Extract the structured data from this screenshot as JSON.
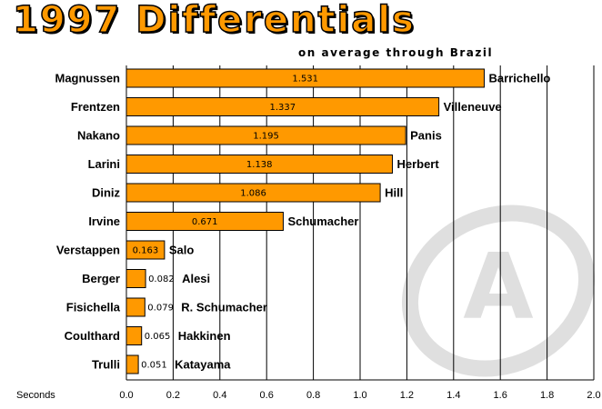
{
  "chart_data": {
    "type": "bar",
    "orientation": "horizontal",
    "title": "1997 Differentials",
    "subtitle": "on average through Brazil",
    "xlabel": "Seconds",
    "xlim": [
      0,
      2.0
    ],
    "xticks": [
      "0.0",
      "0.2",
      "0.4",
      "0.6",
      "0.8",
      "1.0",
      "1.2",
      "1.4",
      "1.6",
      "1.8",
      "2.0"
    ],
    "grid": "vertical",
    "bar_color": "#ff9900",
    "rows": [
      {
        "left": "Magnussen",
        "right": "Barrichello",
        "value": 1.531,
        "label": "1.531"
      },
      {
        "left": "Frentzen",
        "right": "Villeneuve",
        "value": 1.337,
        "label": "1.337"
      },
      {
        "left": "Nakano",
        "right": "Panis",
        "value": 1.195,
        "label": "1.195"
      },
      {
        "left": "Larini",
        "right": "Herbert",
        "value": 1.138,
        "label": "1.138"
      },
      {
        "left": "Diniz",
        "right": "Hill",
        "value": 1.086,
        "label": "1.086"
      },
      {
        "left": "Irvine",
        "right": "Schumacher",
        "value": 0.671,
        "label": "0.671"
      },
      {
        "left": "Verstappen",
        "right": "Salo",
        "value": 0.163,
        "label": "0.163"
      },
      {
        "left": "Berger",
        "right": "Alesi",
        "value": 0.082,
        "label": "0.082"
      },
      {
        "left": "Fisichella",
        "right": "R. Schumacher",
        "value": 0.079,
        "label": "0.079"
      },
      {
        "left": "Coulthard",
        "right": "Hakkinen",
        "value": 0.065,
        "label": "0.065"
      },
      {
        "left": "Trulli",
        "right": "Katayama",
        "value": 0.051,
        "label": "0.051"
      }
    ]
  },
  "watermark": {
    "icon": "a-logo-icon",
    "letter": "A"
  }
}
